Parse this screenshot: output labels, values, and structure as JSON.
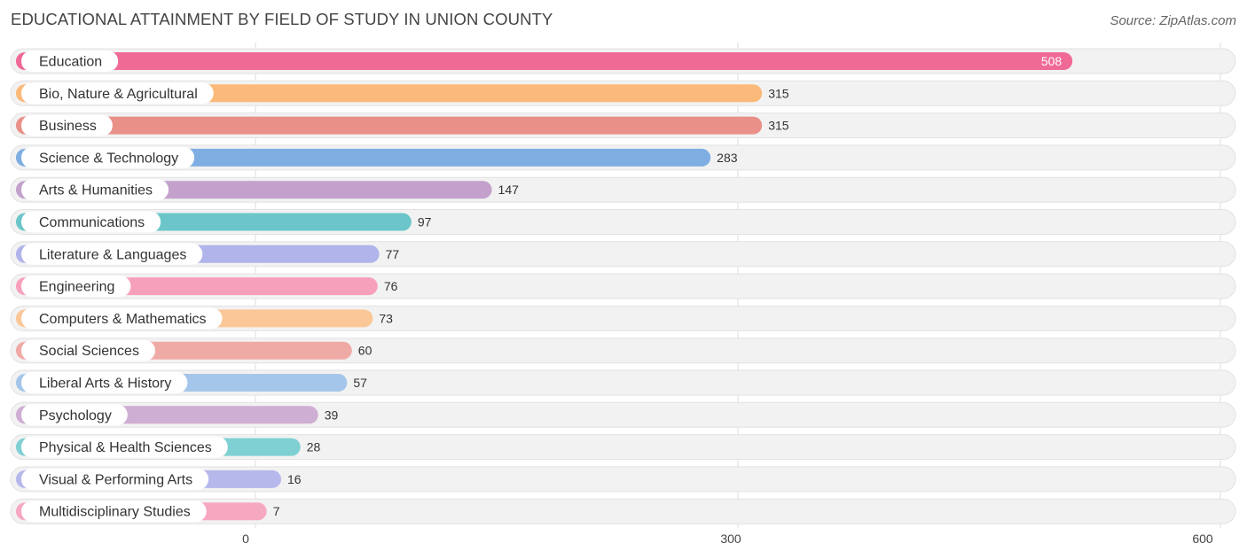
{
  "header": {
    "title": "EDUCATIONAL ATTAINMENT BY FIELD OF STUDY IN UNION COUNTY",
    "source": "Source: ZipAtlas.com"
  },
  "chart_data": {
    "type": "bar",
    "orientation": "horizontal",
    "title": "EDUCATIONAL ATTAINMENT BY FIELD OF STUDY IN UNION COUNTY",
    "categories": [
      "Education",
      "Bio, Nature & Agricultural",
      "Business",
      "Science & Technology",
      "Arts & Humanities",
      "Communications",
      "Literature & Languages",
      "Engineering",
      "Computers & Mathematics",
      "Social Sciences",
      "Liberal Arts & History",
      "Psychology",
      "Physical & Health Sciences",
      "Visual & Performing Arts",
      "Multidisciplinary Studies"
    ],
    "values": [
      508,
      315,
      315,
      283,
      147,
      97,
      77,
      76,
      73,
      60,
      57,
      39,
      28,
      16,
      7
    ],
    "value_labels": [
      "508",
      "315",
      "315",
      "283",
      "147",
      "97",
      "77",
      "76",
      "73",
      "60",
      "57",
      "39",
      "28",
      "16",
      "7"
    ],
    "colors": [
      "#f06a96",
      "#fbb97a",
      "#e99189",
      "#7faee3",
      "#c3a1cc",
      "#6cc6c9",
      "#b0b4eb",
      "#f7a0bb",
      "#fbc797",
      "#f0aaa6",
      "#a4c6ea",
      "#cfaed3",
      "#7fd0d2",
      "#b6b8ec",
      "#f7a8c1"
    ],
    "xlim": [
      0,
      600
    ],
    "ticks": [
      0,
      300,
      600
    ],
    "tick_labels": [
      "0",
      "300",
      "600"
    ],
    "xlabel": "",
    "ylabel": "",
    "grid": true,
    "legend": "none"
  }
}
